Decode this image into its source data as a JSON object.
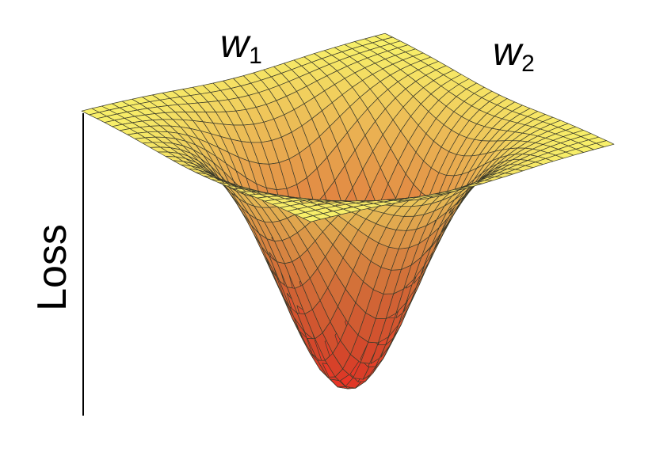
{
  "labels": {
    "w1_base": "w",
    "w1_sub": "1",
    "w2_base": "w",
    "w2_sub": "2",
    "loss": "Loss"
  },
  "surface": {
    "colors": {
      "top": "#f8f16a",
      "bottom": "#ee3426",
      "grid": "#3a3a2a"
    }
  }
}
